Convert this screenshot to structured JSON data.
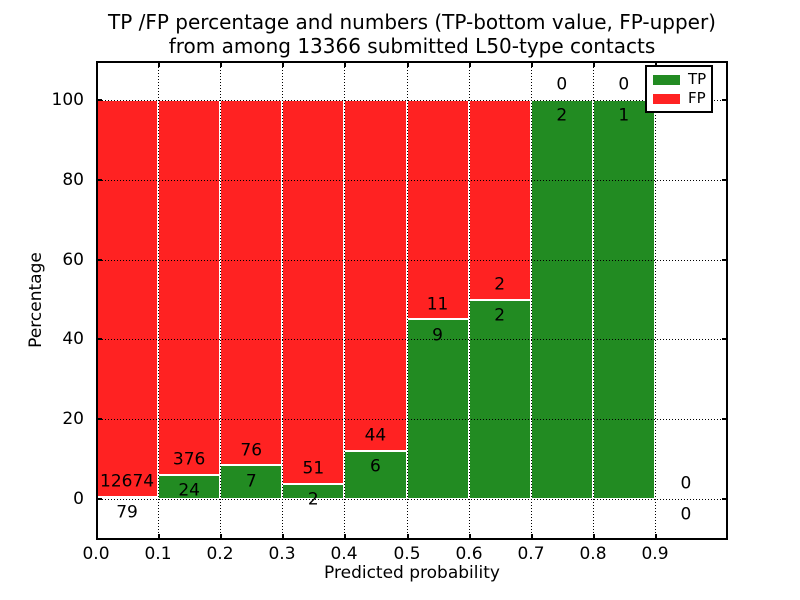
{
  "title": {
    "line1": "TP /FP percentage and numbers (TP-bottom value, FP-upper)",
    "line2": "from among 13366 submitted L50-type contacts"
  },
  "axes": {
    "xlabel": "Predicted probability",
    "ylabel": "Percentage",
    "x_ticks": [
      "0.0",
      "0.1",
      "0.2",
      "0.3",
      "0.4",
      "0.5",
      "0.6",
      "0.7",
      "0.8",
      "0.9"
    ],
    "y_ticks": [
      "0",
      "20",
      "40",
      "60",
      "80",
      "100"
    ]
  },
  "legend": {
    "entries": [
      {
        "label": "TP",
        "color": "#228B22"
      },
      {
        "label": "FP",
        "color": "#FF2222"
      }
    ]
  },
  "colors": {
    "tp": "#228B22",
    "fp": "#FF2222",
    "grid": "#000000",
    "background": "#FFFFFF",
    "text": "#000000"
  },
  "chart_data": {
    "type": "bar",
    "stacked": true,
    "normalized_to_percent": true,
    "title": "TP /FP percentage and numbers (TP-bottom value, FP-upper) from among 13366 submitted L50-type contacts",
    "xlabel": "Predicted probability",
    "ylabel": "Percentage",
    "xlim": [
      0.0,
      1.02
    ],
    "ylim": [
      -10,
      110
    ],
    "grid": "dotted",
    "legend_position": "upper right",
    "bin_width": 0.1,
    "total_contacts": 13366,
    "categories": [
      "0.0-0.1",
      "0.1-0.2",
      "0.2-0.3",
      "0.3-0.4",
      "0.4-0.5",
      "0.5-0.6",
      "0.6-0.7",
      "0.7-0.8",
      "0.8-0.9",
      "0.9-1.0"
    ],
    "series": [
      {
        "name": "TP",
        "counts": [
          79,
          24,
          7,
          2,
          6,
          9,
          2,
          2,
          1,
          0
        ],
        "percent": [
          0.62,
          6.0,
          8.43,
          3.77,
          12.0,
          45.0,
          50.0,
          100.0,
          100.0,
          0.0
        ]
      },
      {
        "name": "FP",
        "counts": [
          12674,
          376,
          76,
          51,
          44,
          11,
          2,
          0,
          0,
          0
        ],
        "percent": [
          99.38,
          94.0,
          91.57,
          96.23,
          88.0,
          55.0,
          50.0,
          0.0,
          0.0,
          0.0
        ]
      }
    ]
  }
}
